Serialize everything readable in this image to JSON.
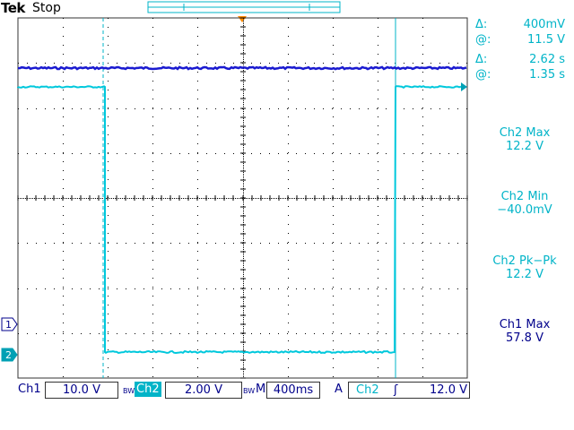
{
  "header": {
    "brand": "Tek",
    "state": "Stop"
  },
  "cursors": {
    "v_delta_symbol": "Δ:",
    "v_delta": "400mV",
    "v_at_symbol": "@:",
    "v_at": "11.5 V",
    "t_delta_symbol": "Δ:",
    "t_delta": "2.62 s",
    "t_at_symbol": "@:",
    "t_at": "1.35 s"
  },
  "measurements": [
    {
      "label": "Ch2 Max",
      "value": "12.2 V",
      "color": "#00b4c8"
    },
    {
      "label": "Ch2 Min",
      "value": "−40.0mV",
      "color": "#00b4c8"
    },
    {
      "label": "Ch2 Pk−Pk",
      "value": "12.2 V",
      "color": "#00b4c8"
    },
    {
      "label": "Ch1 Max",
      "value": "57.8 V",
      "color": "#00008b"
    }
  ],
  "status": {
    "ch1_label": "Ch1",
    "ch1_scale": "10.0 V",
    "bw": "BW",
    "ch2_label": "Ch2",
    "ch2_scale": "2.00 V",
    "timebase_label": "M",
    "timebase": "400ms",
    "trigger_label": "A",
    "trigger_source": "Ch2",
    "trigger_slope": "ʃ",
    "trigger_level": "12.0 V"
  },
  "markers": {
    "ch1": "1",
    "ch2": "2"
  },
  "colors": {
    "ch1": "#1a1ad0",
    "ch2": "#00c8dc",
    "grid": "#000000"
  }
}
